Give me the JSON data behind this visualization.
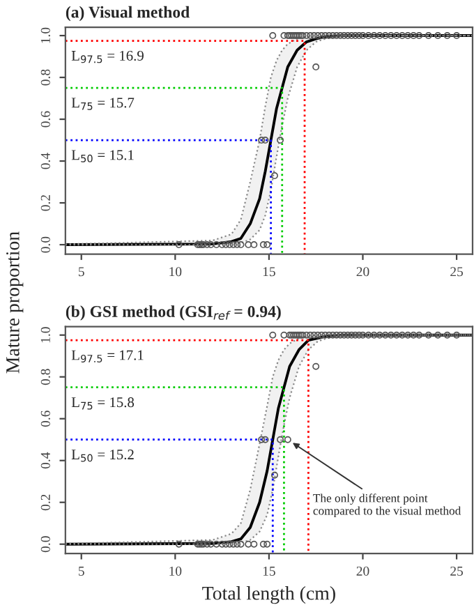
{
  "chart_data": [
    {
      "type": "scatter",
      "title": "(a) Visual method",
      "ylabel": "Mature proportion",
      "xlim": [
        4.15,
        25.85
      ],
      "xticks": [
        5,
        10,
        15,
        20,
        25
      ],
      "ylim": [
        -0.045,
        1.04
      ],
      "yticks": [
        {
          "value": 0,
          "label": "0.0"
        },
        {
          "value": 0.2,
          "label": "0.2"
        },
        {
          "value": 0.4,
          "label": "0.4"
        },
        {
          "value": 0.6,
          "label": "0.6"
        },
        {
          "value": 0.8,
          "label": "0.8"
        },
        {
          "value": 1,
          "label": "1.0"
        }
      ],
      "grid": false,
      "legend": false,
      "series": [
        {
          "type": "scatter",
          "marker": "circle",
          "color": "#555555",
          "x": [
            10.2,
            11.2,
            11.3,
            11.4,
            11.5,
            11.7,
            11.9,
            12.2,
            12.5,
            12.7,
            12.9,
            13.1,
            13.3,
            13.5,
            13.9,
            14.2,
            14.7,
            14.9,
            14.6,
            14.8,
            15.6,
            15.3,
            17.5,
            15.2,
            15.8,
            16.0,
            16.1,
            16.2,
            16.3,
            16.4,
            16.5,
            16.6,
            16.7,
            16.8,
            17.0,
            17.2,
            17.4,
            17.6,
            17.8,
            18.0,
            18.2,
            18.4,
            18.6,
            18.8,
            19.0,
            19.2,
            19.4,
            19.6,
            19.8,
            20.0,
            20.3,
            20.6,
            20.9,
            21.2,
            21.5,
            21.8,
            22.1,
            22.4,
            22.7,
            23.0,
            23.5,
            24.0,
            24.5,
            25.0
          ],
          "values": [
            0,
            0,
            0,
            0,
            0,
            0,
            0,
            0,
            0,
            0,
            0,
            0,
            0,
            0,
            0,
            0,
            0,
            0,
            0.5,
            0.5,
            0.5,
            0.33,
            0.85,
            1,
            1,
            1,
            1,
            1,
            1,
            1,
            1,
            1,
            1,
            1,
            1,
            1,
            1,
            1,
            1,
            1,
            1,
            1,
            1,
            1,
            1,
            1,
            1,
            1,
            1,
            1,
            1,
            1,
            1,
            1,
            1,
            1,
            1,
            1,
            1,
            1,
            1,
            1,
            1,
            1
          ]
        },
        {
          "type": "line",
          "line_style": "solid",
          "color": "#000000",
          "x": [
            4.15,
            12,
            13,
            13.5,
            14,
            14.5,
            14.8,
            15.1,
            15.4,
            15.7,
            16,
            16.5,
            17,
            17.5,
            18,
            19,
            25.85
          ],
          "values": [
            0,
            0.003,
            0.015,
            0.03,
            0.1,
            0.22,
            0.35,
            0.5,
            0.65,
            0.75,
            0.85,
            0.93,
            0.97,
            0.985,
            0.995,
            1,
            1
          ],
          "upper": [
            0.002,
            0.02,
            0.05,
            0.12,
            0.3,
            0.5,
            0.66,
            0.8,
            0.88,
            0.93,
            0.96,
            0.985,
            0.995,
            1,
            1,
            1,
            1
          ],
          "lower": [
            0,
            0,
            0.003,
            0.008,
            0.025,
            0.07,
            0.14,
            0.26,
            0.42,
            0.57,
            0.7,
            0.85,
            0.93,
            0.97,
            0.985,
            1,
            1
          ]
        },
        {
          "type": "line",
          "line_style": "dotted",
          "color": "#ff0000",
          "x": [
            4.15,
            16.9,
            16.9
          ],
          "values": [
            0.975,
            0.975,
            -0.045
          ]
        },
        {
          "type": "line",
          "line_style": "dotted",
          "color": "#00cc00",
          "x": [
            4.15,
            15.7,
            15.7
          ],
          "values": [
            0.75,
            0.75,
            -0.045
          ]
        },
        {
          "type": "line",
          "line_style": "dotted",
          "color": "#0000ff",
          "x": [
            4.15,
            15.1,
            15.1
          ],
          "values": [
            0.5,
            0.5,
            -0.045
          ]
        }
      ],
      "annotations": [
        "L$_{97.5}$ = 16.9",
        "L$_{75}$ = 15.7",
        "L$_{50}$ = 15.1"
      ]
    },
    {
      "type": "scatter",
      "title": "(b) GSI method (GSI$_{ref}$ = 0.94)",
      "xlabel": "Total length (cm)",
      "xlim": [
        4.15,
        25.85
      ],
      "xticks": [
        5,
        10,
        15,
        20,
        25
      ],
      "ylim": [
        -0.045,
        1.04
      ],
      "yticks": [
        {
          "value": 0,
          "label": "0.0"
        },
        {
          "value": 0.2,
          "label": "0.2"
        },
        {
          "value": 0.4,
          "label": "0.4"
        },
        {
          "value": 0.6,
          "label": "0.6"
        },
        {
          "value": 0.8,
          "label": "0.8"
        },
        {
          "value": 1,
          "label": "1.0"
        }
      ],
      "grid": false,
      "legend": false,
      "series": [
        {
          "type": "scatter",
          "marker": "circle",
          "color": "#555555",
          "x": [
            10.2,
            11.2,
            11.3,
            11.4,
            11.5,
            11.7,
            11.9,
            12.2,
            12.5,
            12.7,
            12.9,
            13.1,
            13.3,
            13.5,
            13.9,
            14.2,
            14.7,
            14.9,
            14.6,
            14.8,
            15.6,
            16.0,
            15.3,
            17.5,
            15.2,
            15.8,
            16.1,
            16.2,
            16.3,
            16.4,
            16.5,
            16.6,
            16.7,
            16.8,
            17.0,
            17.2,
            17.4,
            17.6,
            17.8,
            18.0,
            18.2,
            18.4,
            18.6,
            18.8,
            19.0,
            19.2,
            19.4,
            19.6,
            19.8,
            20.0,
            20.3,
            20.6,
            20.9,
            21.2,
            21.5,
            21.8,
            22.1,
            22.4,
            22.7,
            23.0,
            23.5,
            24.0,
            24.5,
            25.0
          ],
          "values": [
            0,
            0,
            0,
            0,
            0,
            0,
            0,
            0,
            0,
            0,
            0,
            0,
            0,
            0,
            0,
            0,
            0,
            0,
            0.5,
            0.5,
            0.5,
            0.5,
            0.33,
            0.85,
            1,
            1,
            1,
            1,
            1,
            1,
            1,
            1,
            1,
            1,
            1,
            1,
            1,
            1,
            1,
            1,
            1,
            1,
            1,
            1,
            1,
            1,
            1,
            1,
            1,
            1,
            1,
            1,
            1,
            1,
            1,
            1,
            1,
            1,
            1,
            1,
            1,
            1,
            1,
            1
          ]
        },
        {
          "type": "line",
          "line_style": "solid",
          "color": "#000000",
          "x": [
            4.15,
            12,
            13,
            13.5,
            14,
            14.5,
            14.9,
            15.2,
            15.5,
            15.8,
            16.1,
            16.6,
            17.1,
            17.6,
            18.1,
            19.1,
            25.85
          ],
          "values": [
            0,
            0.003,
            0.012,
            0.025,
            0.08,
            0.2,
            0.35,
            0.5,
            0.65,
            0.75,
            0.85,
            0.93,
            0.975,
            0.985,
            0.995,
            1,
            1
          ],
          "upper": [
            0.002,
            0.02,
            0.05,
            0.1,
            0.26,
            0.48,
            0.66,
            0.8,
            0.88,
            0.93,
            0.96,
            0.985,
            0.995,
            1,
            1,
            1,
            1
          ],
          "lower": [
            0,
            0,
            0.003,
            0.007,
            0.02,
            0.06,
            0.14,
            0.26,
            0.42,
            0.57,
            0.7,
            0.85,
            0.93,
            0.97,
            0.985,
            1,
            1
          ]
        },
        {
          "type": "line",
          "line_style": "dotted",
          "color": "#ff0000",
          "x": [
            4.15,
            17.1,
            17.1
          ],
          "values": [
            0.975,
            0.975,
            -0.045
          ]
        },
        {
          "type": "line",
          "line_style": "dotted",
          "color": "#00cc00",
          "x": [
            4.15,
            15.8,
            15.8
          ],
          "values": [
            0.75,
            0.75,
            -0.045
          ]
        },
        {
          "type": "line",
          "line_style": "dotted",
          "color": "#0000ff",
          "x": [
            4.15,
            15.2,
            15.2
          ],
          "values": [
            0.5,
            0.5,
            -0.045
          ]
        }
      ],
      "annotations": [
        "L$_{97.5}$ = 17.1",
        "L$_{75}$ = 15.8",
        "L$_{50}$ = 15.2",
        {
          "text": "The only different point\ncompared to the visual method",
          "x": 16.0,
          "y": 0.5
        }
      ]
    }
  ]
}
